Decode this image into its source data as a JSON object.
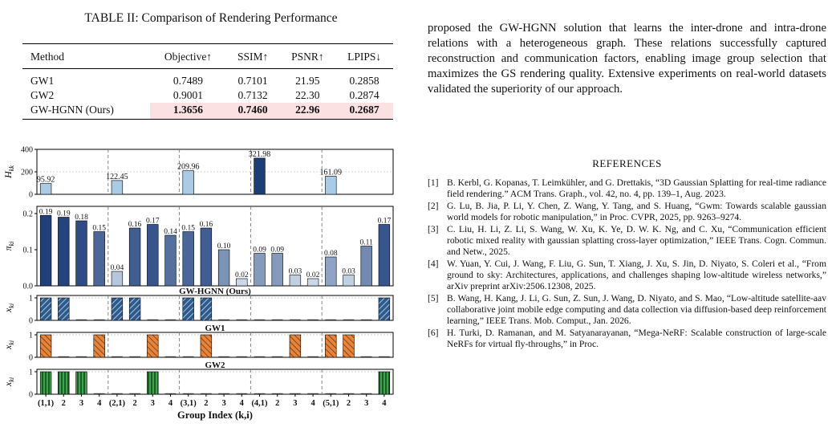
{
  "table": {
    "title": "TABLE II: Comparison of Rendering Performance",
    "headers": [
      "Method",
      "Objective↑",
      "SSIM↑",
      "PSNR↑",
      "LPIPS↓"
    ],
    "rows": [
      [
        "GW1",
        "0.7489",
        "0.7101",
        "21.95",
        "0.2858"
      ],
      [
        "GW2",
        "0.9001",
        "0.7132",
        "22.30",
        "0.2874"
      ],
      [
        "GW-HGNN (Ours)",
        "1.3656",
        "0.7460",
        "22.96",
        "0.2687"
      ]
    ],
    "highlight_color": "#fbe1e1"
  },
  "paragraph": "proposed the GW-HGNN solution that learns the inter-drone and intra-drone relations with a heterogeneous graph. These relations successfully captured reconstruction and communication factors, enabling image group selection that maximizes the GS rendering quality. Extensive experiments on real-world datasets validated the superiority of our approach.",
  "references": {
    "title": "REFERENCES",
    "items": [
      {
        "num": "[1]",
        "text": "B. Kerbl, G. Kopanas, T. Leimkühler, and G. Drettakis, “3D Gaussian Splatting for real-time radiance field rendering.” ACM Trans. Graph., vol. 42, no. 4, pp. 139–1, Aug. 2023."
      },
      {
        "num": "[2]",
        "text": "G. Lu, B. Jia, P. Li, Y. Chen, Z. Wang, Y. Tang, and S. Huang, “Gwm: Towards scalable gaussian world models for robotic manipulation,” in Proc. CVPR, 2025, pp. 9263–9274."
      },
      {
        "num": "[3]",
        "text": "C. Liu, H. Li, Z. Li, S. Wang, W. Xu, K. Ye, D. W. K. Ng, and C. Xu, “Communication efficient robotic mixed reality with gaussian splatting cross-layer optimization,” IEEE Trans. Cogn. Commun. and Netw., 2025."
      },
      {
        "num": "[4]",
        "text": "W. Yuan, Y. Cui, J. Wang, F. Liu, G. Sun, T. Xiang, J. Xu, S. Jin, D. Niyato, S. Coleri et al., “From ground to sky: Architectures, applications, and challenges shaping low-altitude wireless networks,” arXiv preprint arXiv:2506.12308, 2025."
      },
      {
        "num": "[5]",
        "text": "B. Wang, H. Kang, J. Li, G. Sun, Z. Sun, J. Wang, D. Niyato, and S. Mao, “Low-altitude satellite-aav collaborative joint mobile edge computing and data collection via diffusion-based deep reinforcement learning,” IEEE Trans. Mob. Comput., Jan. 2026."
      },
      {
        "num": "[6]",
        "text": "H. Turki, D. Ramanan, and M. Satyanarayanan, “Mega-NeRF: Scalable construction of large-scale NeRFs for virtual fly-throughs,” in Proc."
      }
    ]
  },
  "chart_data": {
    "type": "bar",
    "xlabel": "Group Index (k,i)",
    "x_tick_labels": [
      "(1,1)",
      "2",
      "3",
      "4",
      "(2,1)",
      "2",
      "3",
      "4",
      "(3,1)",
      "2",
      "3",
      "4",
      "(4,1)",
      "2",
      "3",
      "4",
      "(5,1)",
      "2",
      "3",
      "4"
    ],
    "panels": [
      {
        "ylabel": "H_kk",
        "ylim": [
          0,
          400
        ],
        "yticks": [
          "0",
          "200",
          "400"
        ],
        "bars": [
          {
            "index": 0,
            "value": 95.92,
            "label": "95.92"
          },
          {
            "index": 4,
            "value": 122.45,
            "label": "122.45"
          },
          {
            "index": 8,
            "value": 209.96,
            "label": "209.96"
          },
          {
            "index": 12,
            "value": 321.98,
            "label": "321.98"
          },
          {
            "index": 16,
            "value": 161.09,
            "label": "161.09"
          }
        ]
      },
      {
        "ylabel": "π_ki",
        "ylim": [
          0,
          0.22
        ],
        "yticks": [
          "0.0",
          "0.1",
          "0.2"
        ],
        "values": [
          0.195,
          0.19,
          0.18,
          0.15,
          0.04,
          0.16,
          0.17,
          0.14,
          0.15,
          0.16,
          0.1,
          0.02,
          0.09,
          0.09,
          0.03,
          0.02,
          0.08,
          0.03,
          0.11,
          0.17
        ],
        "labels": [
          "0.19",
          "0.19",
          "0.18",
          "0.15",
          "0.04",
          "0.16",
          "0.17",
          "0.14",
          "0.15",
          "0.16",
          "0.10",
          "0.02",
          "0.09",
          "0.09",
          "0.03",
          "0.02",
          "0.08",
          "0.03",
          "0.11",
          "0.17"
        ]
      },
      {
        "title": "GW-HGNN (Ours)",
        "ylabel": "x_ki",
        "yticks": [
          "0",
          "1"
        ],
        "values": [
          1,
          1,
          0,
          0,
          1,
          1,
          0,
          0,
          1,
          1,
          0,
          0,
          0,
          0,
          0,
          0,
          0,
          0,
          0,
          1
        ],
        "color": "#2d5b8e"
      },
      {
        "title": "GW1",
        "ylabel": "x_ki",
        "yticks": [
          "0",
          "1"
        ],
        "values": [
          1,
          0,
          0,
          1,
          0,
          0,
          1,
          0,
          0,
          1,
          0,
          0,
          0,
          0,
          1,
          0,
          1,
          1,
          0,
          0
        ],
        "color": "#e8843a"
      },
      {
        "title": "GW2",
        "ylabel": "x_ki",
        "yticks": [
          "0",
          "1"
        ],
        "values": [
          1,
          1,
          1,
          0,
          0,
          0,
          1,
          0,
          0,
          0,
          0,
          0,
          0,
          0,
          0,
          0,
          0,
          0,
          0,
          1
        ],
        "color": "#3aa54a"
      }
    ]
  }
}
